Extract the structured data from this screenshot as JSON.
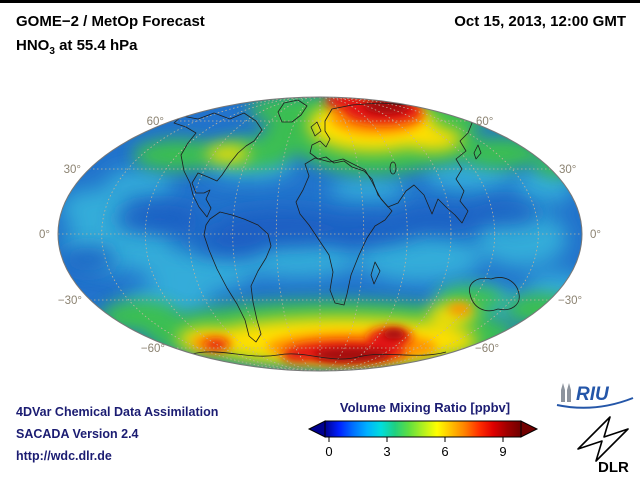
{
  "header": {
    "title": "GOME−2 / MetOp Forecast",
    "subtitle": {
      "prefix": "HNO",
      "sub": "3",
      "suffix": " at 55.4 hPa"
    },
    "datetime": "Oct 15, 2013, 12:00 GMT"
  },
  "map": {
    "projection": "mollweide-global",
    "lat_labels": [
      "60°",
      "30°",
      "0°",
      "−30°",
      "−60°"
    ]
  },
  "colorbar": {
    "title": "Volume Mixing Ratio [ppbv]",
    "ticks": [
      "0",
      "3",
      "6",
      "9"
    ],
    "range_min": 0,
    "range_max": 10,
    "colors": [
      "#00008f",
      "#0020ff",
      "#0070ff",
      "#00b0ff",
      "#00dddd",
      "#20d080",
      "#5fdf40",
      "#b0f020",
      "#ffff00",
      "#ffc000",
      "#ff8000",
      "#ff3000",
      "#e00000",
      "#a00000",
      "#700000"
    ]
  },
  "map_data": {
    "units": "ppbv",
    "high_value_regions": [
      "Arctic / north polar cap (red, ~9+ ppbv)",
      "Southern high latitudes near Antarctica (red, ~9+ ppbv)"
    ],
    "mid_value_regions": [
      "Green-yellow bands near 60°N and 50–70°S (~3–6 ppbv)"
    ],
    "low_value_regions": [
      "Tropics and mid-latitudes (blue/cyan, ~0–2 ppbv)"
    ]
  },
  "footer": {
    "line1": "4DVar Chemical Data Assimilation",
    "line2": "SACADA Version 2.4",
    "line3": "http://wdc.dlr.de"
  },
  "logos": {
    "riu": "RIU",
    "dlr": "DLR"
  }
}
